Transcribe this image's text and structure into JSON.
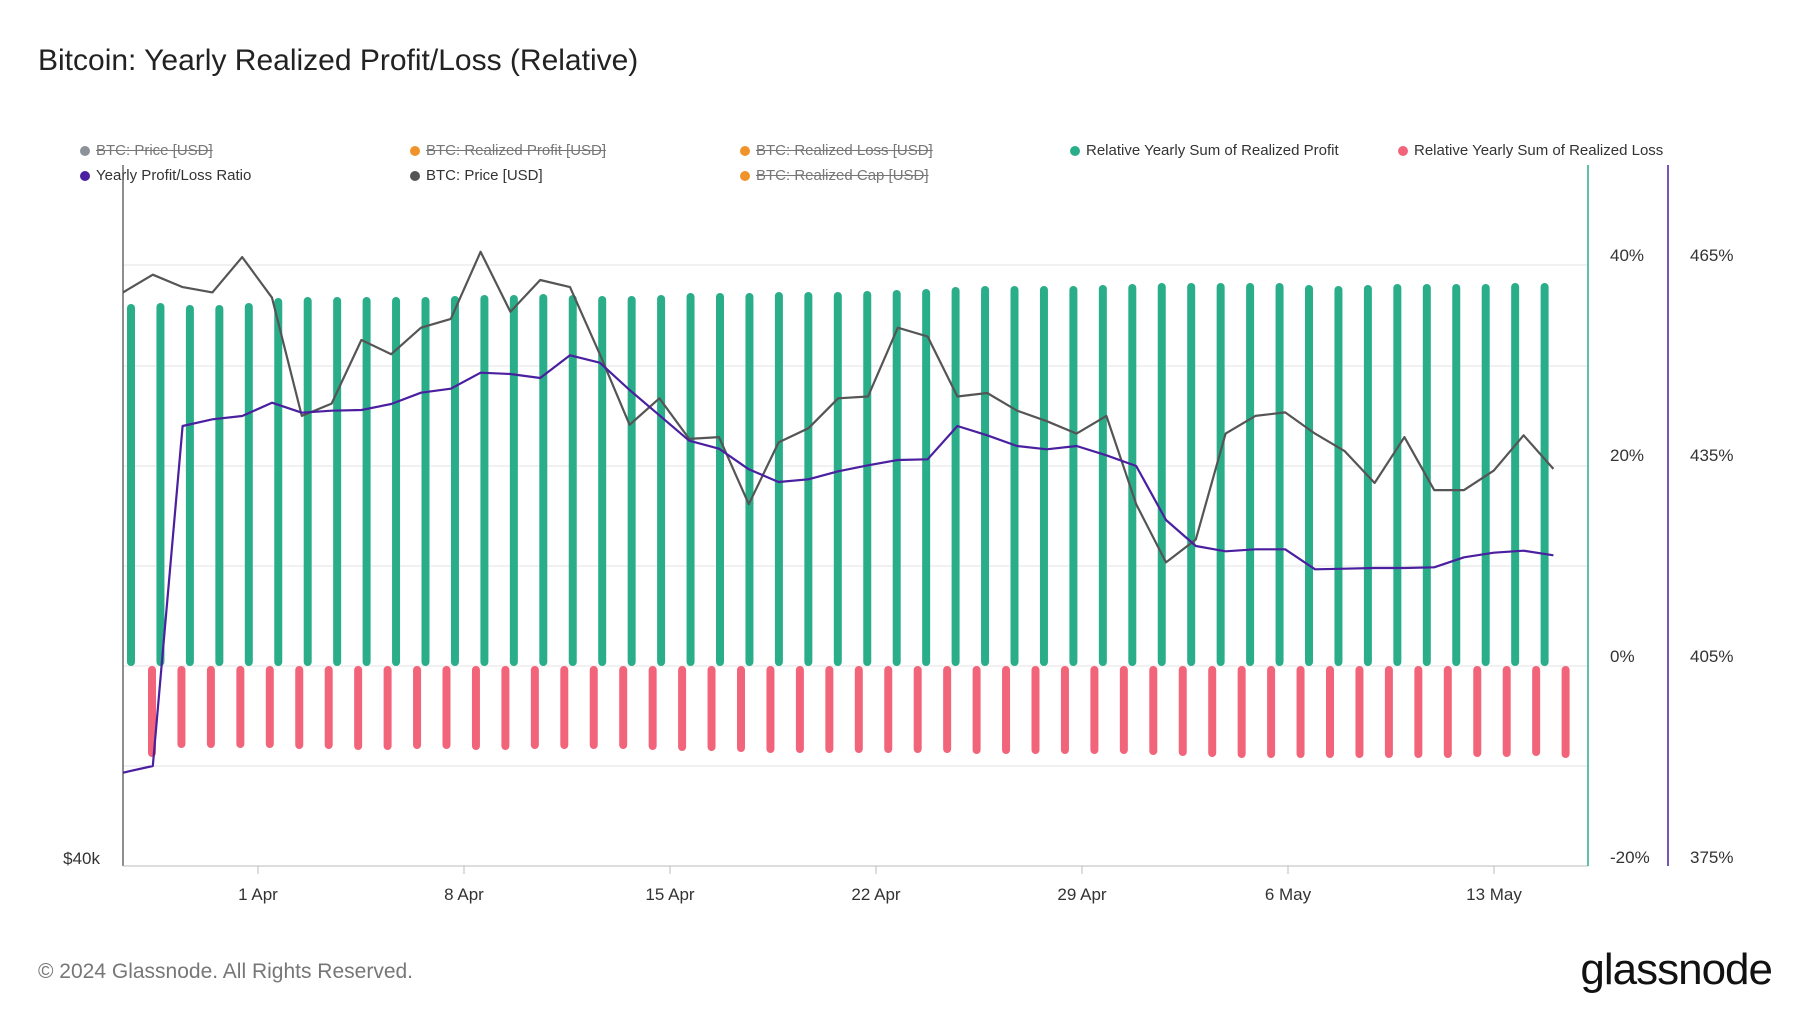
{
  "title": "Bitcoin: Yearly Realized Profit/Loss (Relative)",
  "footer": "© 2024 Glassnode. All Rights Reserved.",
  "brand": "glassnode",
  "legend": [
    {
      "label": "BTC: Price [USD]",
      "color": "#8c9299",
      "enabled": false
    },
    {
      "label": "BTC: Realized Profit [USD]",
      "color": "#f0932b",
      "enabled": false
    },
    {
      "label": "BTC: Realized Loss [USD]",
      "color": "#f0932b",
      "enabled": false
    },
    {
      "label": "Relative Yearly Sum of Realized Profit",
      "color": "#2aae8a",
      "enabled": true
    },
    {
      "label": "Relative Yearly Sum of Realized Loss",
      "color": "#f2647a",
      "enabled": true
    },
    {
      "label": "Yearly Profit/Loss Ratio",
      "color": "#4a1fa0",
      "enabled": true
    },
    {
      "label": "BTC: Price [USD]",
      "color": "#555555",
      "enabled": true
    },
    {
      "label": "BTC: Realized Cap [USD]",
      "color": "#f0932b",
      "enabled": false
    }
  ],
  "chart_data": {
    "type": "bar",
    "x_ticks": [
      "1 Apr",
      "8 Apr",
      "15 Apr",
      "22 Apr",
      "29 Apr",
      "6 May",
      "13 May"
    ],
    "left_axis": {
      "label_bottom": "$40k"
    },
    "right_axis_pct": {
      "ticks": [
        "40%",
        "20%",
        "0%",
        "-20%"
      ],
      "range": [
        -20,
        50
      ],
      "color": "#2aae8a"
    },
    "right_axis_ratio": {
      "ticks": [
        "465%",
        "435%",
        "405%",
        "375%"
      ],
      "range": [
        375,
        480
      ],
      "color": "#4a1fa0"
    },
    "series": [
      {
        "name": "Relative Yearly Sum of Realized Profit",
        "color": "#2aae8a",
        "values": [
          36.2,
          36.3,
          36.1,
          36.1,
          36.3,
          36.8,
          36.9,
          36.9,
          36.9,
          36.9,
          36.9,
          37.0,
          37.1,
          37.1,
          37.2,
          37.1,
          37.0,
          37.0,
          37.1,
          37.3,
          37.3,
          37.3,
          37.4,
          37.4,
          37.4,
          37.5,
          37.6,
          37.7,
          37.9,
          38.0,
          38.0,
          38.0,
          38.0,
          38.1,
          38.2,
          38.3,
          38.3,
          38.3,
          38.3,
          38.3,
          38.1,
          38.0,
          38.1,
          38.2,
          38.2,
          38.2,
          38.2,
          38.3,
          38.3
        ]
      },
      {
        "name": "Relative Yearly Sum of Realized Loss",
        "color": "#f2647a",
        "values": [
          -9.1,
          -8.2,
          -8.2,
          -8.2,
          -8.2,
          -8.3,
          -8.3,
          -8.4,
          -8.4,
          -8.3,
          -8.3,
          -8.4,
          -8.4,
          -8.3,
          -8.3,
          -8.3,
          -8.3,
          -8.4,
          -8.5,
          -8.5,
          -8.6,
          -8.7,
          -8.7,
          -8.7,
          -8.7,
          -8.7,
          -8.7,
          -8.7,
          -8.8,
          -8.8,
          -8.8,
          -8.8,
          -8.8,
          -8.8,
          -8.9,
          -9.0,
          -9.1,
          -9.2,
          -9.2,
          -9.2,
          -9.2,
          -9.2,
          -9.2,
          -9.2,
          -9.2,
          -9.1,
          -9.1,
          -9.0,
          -9.2
        ]
      },
      {
        "name": "Yearly Profit/Loss Ratio",
        "color": "#4a1fa0",
        "values": [
          389,
          390,
          441,
          442,
          442.5,
          444.5,
          443,
          443.3,
          443.4,
          444.3,
          446,
          446.6,
          449,
          448.8,
          448.2,
          451.6,
          450.5,
          446.4,
          442.6,
          438.8,
          437.6,
          434.5,
          432.6,
          433,
          434.2,
          435.1,
          435.9,
          436,
          441,
          439.6,
          438,
          437.5,
          438,
          436.6,
          435,
          426.9,
          423,
          422.2,
          422.5,
          422.5,
          419.5,
          419.6,
          419.7,
          419.7,
          419.8,
          421.3,
          422,
          422.3,
          421.6
        ]
      },
      {
        "name": "BTC: Price [USD]",
        "color": "#555555",
        "values": [
          72.5,
          73.5,
          72.8,
          72.5,
          74.5,
          72.2,
          65.5,
          66.2,
          69.8,
          69.0,
          70.5,
          71.0,
          74.8,
          71.4,
          73.2,
          72.8,
          69.0,
          65.0,
          66.5,
          64.2,
          64.3,
          60.5,
          64.0,
          64.8,
          66.5,
          66.6,
          70.5,
          70.0,
          66.6,
          66.8,
          65.8,
          65.2,
          64.5,
          65.5,
          60.5,
          57.2,
          58.5,
          64.5,
          65.5,
          65.7,
          64.5,
          63.5,
          61.7,
          64.3,
          61.3,
          61.3,
          62.4,
          64.4,
          62.5
        ]
      }
    ]
  }
}
